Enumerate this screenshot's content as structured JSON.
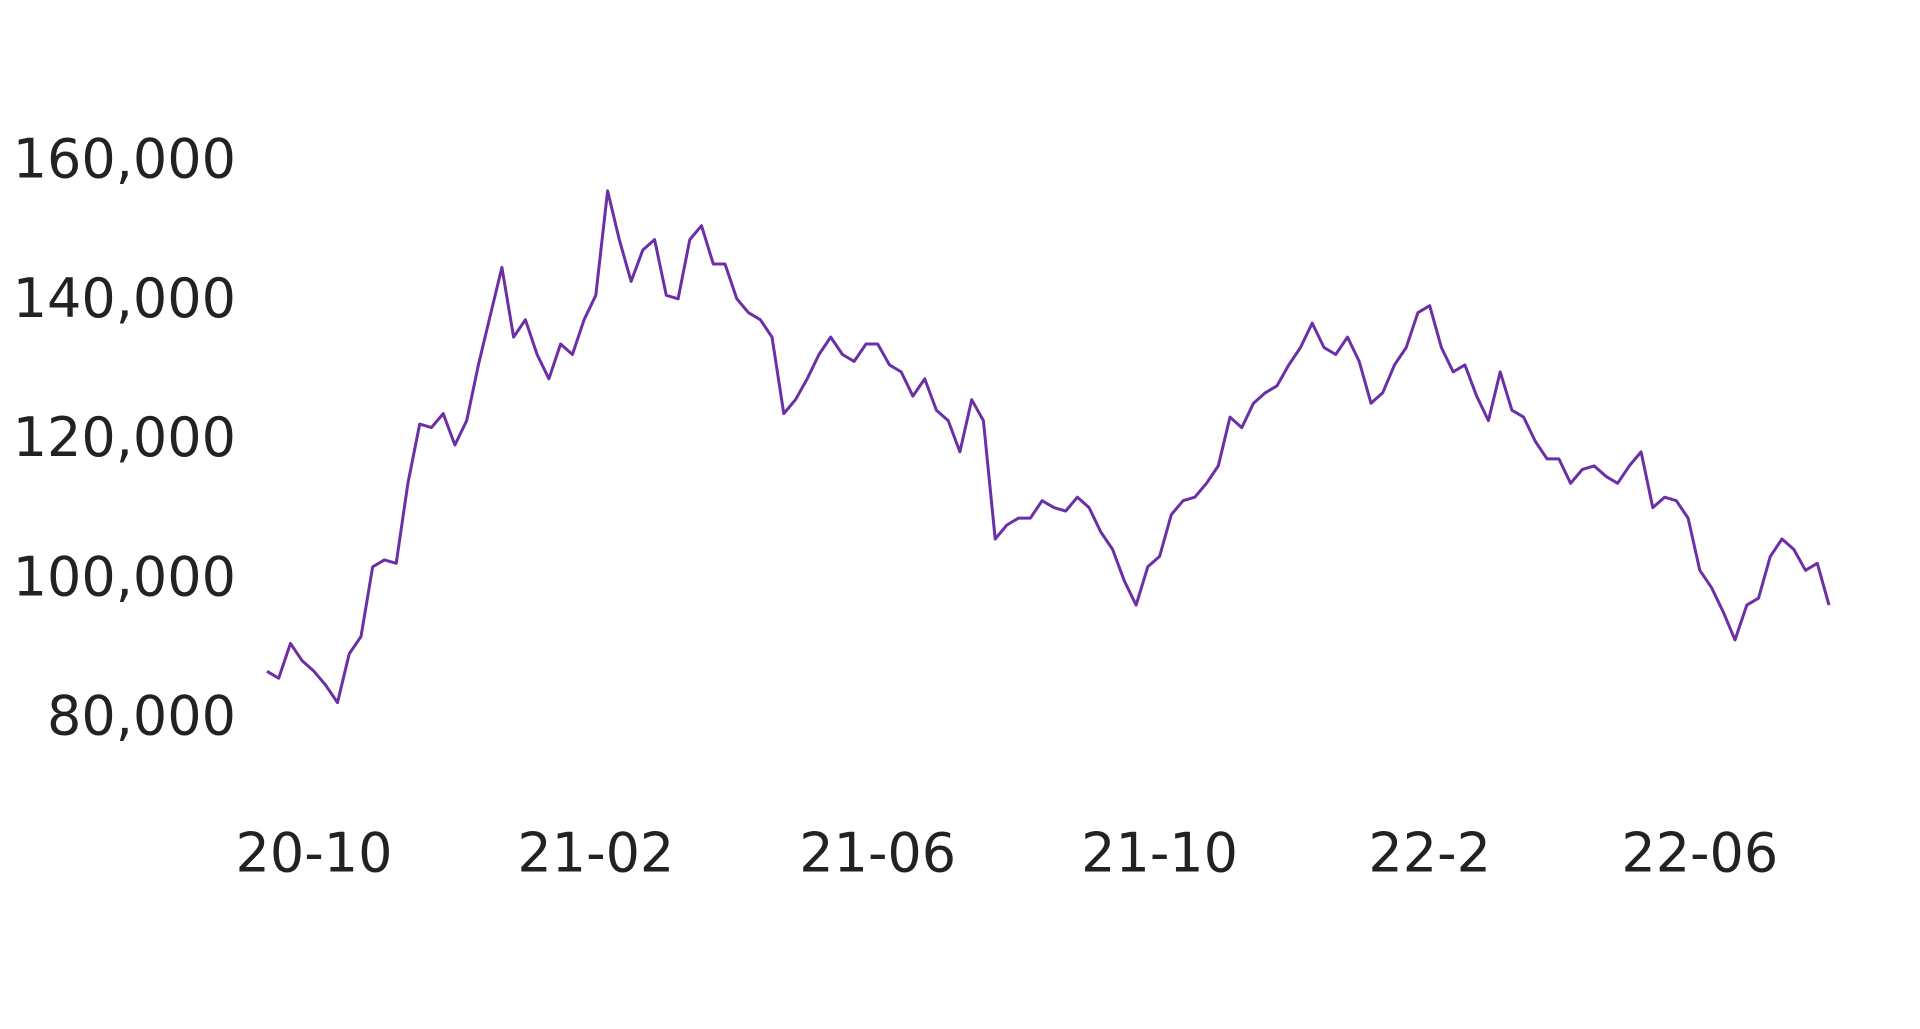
{
  "chart_data": {
    "type": "line",
    "categories": [
      null,
      null,
      null,
      null,
      "20-10",
      null,
      null,
      null,
      null,
      null,
      null,
      null,
      null,
      null,
      null,
      null,
      null,
      null,
      null,
      null,
      null,
      null,
      null,
      null,
      null,
      null,
      null,
      null,
      "21-02",
      null,
      null,
      null,
      null,
      null,
      null,
      null,
      null,
      null,
      null,
      null,
      null,
      null,
      null,
      null,
      null,
      null,
      null,
      null,
      null,
      null,
      null,
      null,
      "21-06",
      null,
      null,
      null,
      null,
      null,
      null,
      null,
      null,
      null,
      null,
      null,
      null,
      null,
      null,
      null,
      null,
      null,
      null,
      null,
      null,
      null,
      null,
      null,
      "21-10",
      null,
      null,
      null,
      null,
      null,
      null,
      null,
      null,
      null,
      null,
      null,
      null,
      null,
      null,
      null,
      null,
      null,
      null,
      null,
      null,
      null,
      null,
      "22-2",
      null,
      null,
      null,
      null,
      null,
      null,
      null,
      null,
      null,
      null,
      null,
      null,
      null,
      null,
      null,
      null,
      null,
      null,
      null,
      null,
      null,
      null,
      "22-06",
      null,
      null,
      null,
      null,
      null,
      null,
      null,
      null,
      null,
      null,
      null
    ],
    "values": [
      87000,
      86000,
      91000,
      88500,
      87000,
      85000,
      82500,
      89500,
      92000,
      102000,
      103000,
      102500,
      114000,
      122500,
      122000,
      124000,
      119500,
      123000,
      131000,
      138000,
      145000,
      135000,
      137500,
      132500,
      129000,
      134000,
      132500,
      137500,
      141000,
      156000,
      149000,
      143000,
      147500,
      149000,
      141000,
      140500,
      149000,
      151000,
      145500,
      145500,
      140500,
      138500,
      137500,
      135000,
      124000,
      126000,
      129000,
      132500,
      135000,
      132500,
      131500,
      134000,
      134000,
      131000,
      130000,
      126500,
      129000,
      124500,
      123000,
      118500,
      126000,
      123000,
      106000,
      108000,
      109000,
      109000,
      111500,
      110500,
      110000,
      112000,
      110500,
      107000,
      104500,
      100000,
      96500,
      102000,
      103500,
      109500,
      111500,
      112000,
      114000,
      116500,
      123500,
      122000,
      125500,
      127000,
      128000,
      131000,
      133500,
      137000,
      133500,
      132500,
      135000,
      131500,
      125500,
      127000,
      131000,
      133500,
      138500,
      139500,
      133500,
      130000,
      131000,
      126500,
      123000,
      130000,
      124500,
      123500,
      120000,
      117500,
      117500,
      114000,
      116000,
      116500,
      115000,
      114000,
      116500,
      118500,
      110500,
      112000,
      111500,
      109000,
      101500,
      99000,
      95500,
      91500,
      96500,
      97500,
      103500,
      106000,
      104500,
      101500,
      102500,
      96500
    ],
    "color": "#6b2fa6",
    "ylim": [
      80000,
      160000
    ],
    "yticks": [
      {
        "value": 80000,
        "label": "80,000"
      },
      {
        "value": 100000,
        "label": "100,000"
      },
      {
        "value": 120000,
        "label": "120,000"
      },
      {
        "value": 140000,
        "label": "140,000"
      },
      {
        "value": 160000,
        "label": "160,000"
      }
    ],
    "grid": false
  }
}
